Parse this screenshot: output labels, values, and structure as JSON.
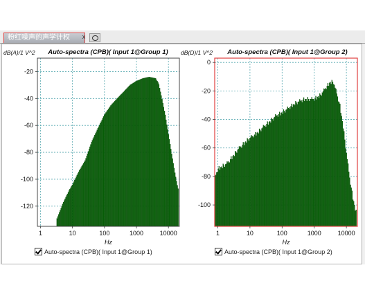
{
  "tab": {
    "title": "粉红噪声的声学计权",
    "close_glyph": "x"
  },
  "chart_data": [
    {
      "type": "bar",
      "title": "Auto-spectra (CPB)( Input 1@Group 1)",
      "ylabel": "dB(A)/1 V^2",
      "xlabel": "Hz",
      "xscale": "log",
      "xlim": [
        0.8,
        22000
      ],
      "ylim": [
        -135,
        -10
      ],
      "xticks": [
        1,
        10,
        100,
        1000,
        10000
      ],
      "xtick_labels": [
        "1",
        "10",
        "100",
        "1000",
        "10000"
      ],
      "yticks": [
        -120,
        -100,
        -80,
        -60,
        -40,
        -20
      ],
      "ytick_labels": [
        "-120",
        "-100",
        "-80",
        "-60",
        "-40",
        "-20"
      ],
      "grid": true,
      "bar_color": "#0a6a0a",
      "legend": "Auto-spectra (CPB)( Input 1@Group 1)",
      "profile_x": [
        3.2,
        4,
        5,
        6.3,
        8,
        10,
        16,
        25,
        40,
        63,
        100,
        160,
        250,
        400,
        630,
        1000,
        1600,
        2500,
        4000,
        5000,
        6300,
        8000,
        10000,
        12500,
        16000,
        20000
      ],
      "profile_y": [
        -130,
        -124,
        -118,
        -113,
        -108,
        -104,
        -94,
        -86,
        -72,
        -62,
        -52,
        -45,
        -40,
        -35,
        -30,
        -27,
        -25,
        -24,
        -25,
        -29,
        -40,
        -52,
        -66,
        -80,
        -95,
        -107
      ]
    },
    {
      "type": "bar",
      "title": "Auto-spectra (CPB)( Input 1@Group 2)",
      "ylabel": "dB(D)/1 V^2",
      "xlabel": "Hz",
      "xscale": "log",
      "xlim": [
        0.8,
        22000
      ],
      "ylim": [
        -115,
        3
      ],
      "xticks": [
        1,
        10,
        100,
        1000,
        10000
      ],
      "xtick_labels": [
        "1",
        "10",
        "100",
        "1000",
        "10000"
      ],
      "yticks": [
        -100,
        -80,
        -60,
        -40,
        -20,
        0
      ],
      "ytick_labels": [
        "-100",
        "-80",
        "-60",
        "-40",
        "-20",
        "0"
      ],
      "grid": true,
      "bar_color": "#0a6a0a",
      "legend": "Auto-spectra (CPB)( Input 1@Group 2)",
      "profile_x": [
        0.8,
        1,
        2,
        4,
        8,
        16,
        31.5,
        63,
        125,
        250,
        500,
        1000,
        1600,
        2500,
        3150,
        4000,
        6300,
        8000,
        10000,
        12500,
        16000,
        20000
      ],
      "profile_y": [
        -82,
        -75,
        -71,
        -62,
        -55,
        -50,
        -44,
        -38,
        -34,
        -29,
        -26,
        -26,
        -23,
        -17,
        -14,
        -14,
        -30,
        -45,
        -63,
        -80,
        -95,
        -105
      ]
    }
  ]
}
